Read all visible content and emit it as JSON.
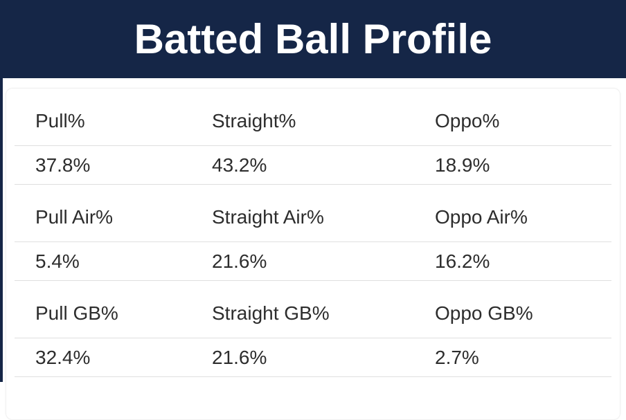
{
  "header": {
    "title": "Batted Ball Profile"
  },
  "theme": {
    "navy": "#152647",
    "title-color": "#ffffff",
    "text-color": "#2d2d2d",
    "divider": "#dfdfdf",
    "card-border": "#f0f0f0",
    "bg": "#ffffff"
  },
  "chart_data": {
    "type": "table",
    "title": "Batted Ball Profile",
    "columns": [
      "Pull",
      "Straight",
      "Oppo"
    ],
    "groups": [
      {
        "labels": [
          "Pull%",
          "Straight%",
          "Oppo%"
        ],
        "values": [
          "37.8%",
          "43.2%",
          "18.9%"
        ],
        "values_numeric": [
          37.8,
          43.2,
          18.9
        ]
      },
      {
        "labels": [
          "Pull Air%",
          "Straight Air%",
          "Oppo Air%"
        ],
        "values": [
          "5.4%",
          "21.6%",
          "16.2%"
        ],
        "values_numeric": [
          5.4,
          21.6,
          16.2
        ]
      },
      {
        "labels": [
          "Pull GB%",
          "Straight GB%",
          "Oppo GB%"
        ],
        "values": [
          "32.4%",
          "21.6%",
          "2.7%"
        ],
        "values_numeric": [
          32.4,
          21.6,
          2.7
        ]
      }
    ]
  }
}
